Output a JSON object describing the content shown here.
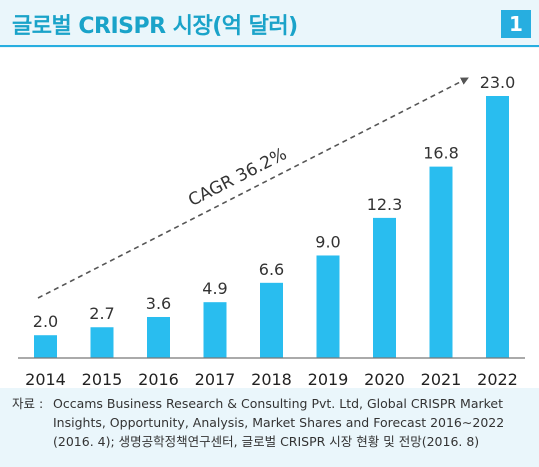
{
  "header": {
    "title": "글로벌 CRISPR 시장(억 달러)",
    "badge": "1"
  },
  "colors": {
    "accent": "#27aee0",
    "bar": "#29bdef",
    "title": "#1aa3c9"
  },
  "chart_data": {
    "type": "bar",
    "categories": [
      "2014",
      "2015",
      "2016",
      "2017",
      "2018",
      "2019",
      "2020",
      "2021",
      "2022"
    ],
    "values": [
      2.0,
      2.7,
      3.6,
      4.9,
      6.6,
      9.0,
      12.3,
      16.8,
      23.0
    ],
    "value_labels": [
      "2.0",
      "2.7",
      "3.6",
      "4.9",
      "6.6",
      "9.0",
      "12.3",
      "16.8",
      "23.0"
    ],
    "ylim": [
      0,
      23.0
    ],
    "annotation": "CAGR 36.2%",
    "grid": false
  },
  "source": {
    "label": "자료 :",
    "text": "Occams Business Research & Consulting Pvt. Ltd, Global CRISPR Market Insights, Opportunity, Analysis, Market Shares and Forecast 2016∼2022 (2016. 4); 생명공학정책연구센터, 글로벌 CRISPR 시장 현황 및 전망(2016. 8)"
  }
}
